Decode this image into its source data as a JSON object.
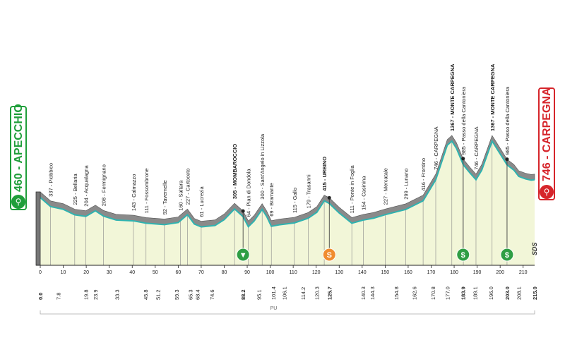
{
  "stage": {
    "km_ticks": [
      "0",
      "10",
      "20",
      "30",
      "40",
      "50",
      "60",
      "70",
      "80",
      "90",
      "100",
      "110",
      "120",
      "130",
      "140",
      "150",
      "160",
      "170",
      "180",
      "190",
      "200",
      "210"
    ],
    "cum_km": [
      "0.0",
      "7.8",
      "19.8",
      "23.9",
      "33.3",
      "45.8",
      "51.2",
      "59.3",
      "65.3",
      "68.4",
      "74.6",
      "88.2",
      "95.1",
      "101.4",
      "106.1",
      "114.2",
      "120.3",
      "125.7",
      "140.3",
      "144.3",
      "154.8",
      "162.6",
      "170.8",
      "177.0",
      "183.9",
      "189.1",
      "196.0",
      "203.0",
      "208.1",
      "215.0"
    ],
    "region": "PU",
    "brand": "SDS",
    "start": {
      "alt": "460",
      "name": "APECCHIO"
    },
    "finish": {
      "alt": "746",
      "name": "CARPEGNA"
    },
    "waypoints": [
      {
        "km": 4.5,
        "alt": 337,
        "label": "337 - Piobbico"
      },
      {
        "km": 15,
        "alt": 225,
        "label": "225 - Bellaria"
      },
      {
        "km": 19.8,
        "alt": 204,
        "label": "204 - Acqualagna"
      },
      {
        "km": 27.5,
        "alt": 208,
        "label": "208 - Fermignano"
      },
      {
        "km": 40.5,
        "alt": 143,
        "label": "143 - Calmazzo"
      },
      {
        "km": 46,
        "alt": 111,
        "label": "111 - Fossombrone"
      },
      {
        "km": 54,
        "alt": 92,
        "label": "92 - Tavernelle"
      },
      {
        "km": 61,
        "alt": 160,
        "label": "160 - Saltara"
      },
      {
        "km": 64,
        "alt": 227,
        "label": "227 - Cartoceto"
      },
      {
        "km": 70,
        "alt": 61,
        "label": "61 - Lucrezia"
      },
      {
        "km": 84.5,
        "alt": 305,
        "label": "305 - MOMBAROCCIO",
        "bold": true
      },
      {
        "km": 90.5,
        "alt": 64,
        "label": "64 - Pian di Dondola"
      },
      {
        "km": 96.5,
        "alt": 300,
        "label": "300 - Sant'Angelo in Lizzola"
      },
      {
        "km": 100.5,
        "alt": 69,
        "label": "69 - Bramante"
      },
      {
        "km": 110.5,
        "alt": 115,
        "label": "115 - Gallo"
      },
      {
        "km": 116.5,
        "alt": 179,
        "label": "179 - Trasanni"
      },
      {
        "km": 123.5,
        "alt": 415,
        "label": "415 - URBINO",
        "bold": true
      },
      {
        "km": 135.5,
        "alt": 111,
        "label": "111 - Ponte in Foglia"
      },
      {
        "km": 140.5,
        "alt": 154,
        "label": "154 - Casinina"
      },
      {
        "km": 150,
        "alt": 227,
        "label": "227 - Mercatale"
      },
      {
        "km": 159,
        "alt": 299,
        "label": "299 - Lunano"
      },
      {
        "km": 166.5,
        "alt": 416,
        "label": "416 - Frontino"
      },
      {
        "km": 172,
        "alt": 746,
        "label": "746 - CARPEGNA"
      },
      {
        "km": 179,
        "alt": 1367,
        "label": "1367 - MONTE CARPEGNA",
        "bold": true
      },
      {
        "km": 184,
        "alt": 985,
        "label": "985 - Passo della Cantoniera"
      },
      {
        "km": 189.5,
        "alt": 746,
        "label": "746 - CARPEGNA"
      },
      {
        "km": 196.5,
        "alt": 1367,
        "label": "1367 - MONTE CARPEGNA",
        "bold": true
      },
      {
        "km": 203,
        "alt": 985,
        "label": "985 - Passo della Cantoniera"
      }
    ],
    "profile_km": [
      0,
      4.5,
      10,
      15,
      19.8,
      24,
      27.5,
      33,
      40.5,
      46,
      54,
      60,
      64,
      67,
      70,
      76,
      80,
      84.5,
      88.2,
      90.5,
      93,
      96.5,
      98.5,
      100.5,
      104,
      110.5,
      116.5,
      120.3,
      123.5,
      125.7,
      130,
      135.5,
      140.5,
      145,
      150,
      159,
      166.5,
      172,
      177,
      179,
      181,
      184,
      187,
      189.5,
      192,
      196.5,
      198.5,
      203,
      206,
      208.1,
      211,
      213.5,
      215
    ],
    "profile_alt": [
      460,
      337,
      300,
      225,
      204,
      280,
      208,
      155,
      143,
      111,
      92,
      120,
      227,
      100,
      61,
      80,
      160,
      305,
      200,
      64,
      140,
      300,
      200,
      69,
      90,
      115,
      179,
      260,
      415,
      380,
      250,
      111,
      154,
      180,
      227,
      299,
      416,
      746,
      1300,
      1367,
      1250,
      985,
      850,
      746,
      900,
      1367,
      1250,
      985,
      900,
      800,
      760,
      740,
      746
    ],
    "markers": [
      {
        "km": 88.2,
        "type": "feed",
        "color": "#2f9e44",
        "symbol": "▼"
      },
      {
        "km": 125.7,
        "type": "sprint",
        "color": "#f08c2e",
        "symbol": "S"
      },
      {
        "km": 183.9,
        "type": "kom",
        "color": "#2f9e44",
        "symbol": "$"
      },
      {
        "km": 203.0,
        "type": "kom",
        "color": "#2f9e44",
        "symbol": "$"
      }
    ],
    "colors": {
      "fill": "#f2f6d8",
      "line": "#2fb3b0",
      "hill": "#8a8a8a",
      "start": "#1f9e3a",
      "finish": "#d6252b"
    }
  }
}
